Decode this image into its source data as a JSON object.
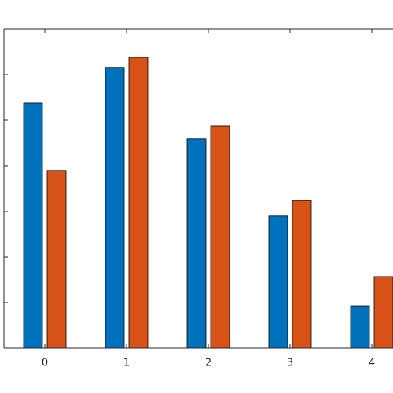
{
  "chart_data": {
    "type": "bar",
    "categories": [
      "0",
      "1",
      "2",
      "3",
      "4"
    ],
    "series": [
      {
        "color": "#0072BD",
        "values": [
          5.38,
          6.16,
          4.59,
          2.9,
          0.93
        ]
      },
      {
        "color": "#D95319",
        "values": [
          3.9,
          6.38,
          4.88,
          3.24,
          1.57
        ]
      }
    ],
    "ylim": [
      0,
      7
    ],
    "yticks": [
      0,
      1,
      2,
      3,
      4,
      5,
      6,
      7
    ],
    "grid": false
  }
}
